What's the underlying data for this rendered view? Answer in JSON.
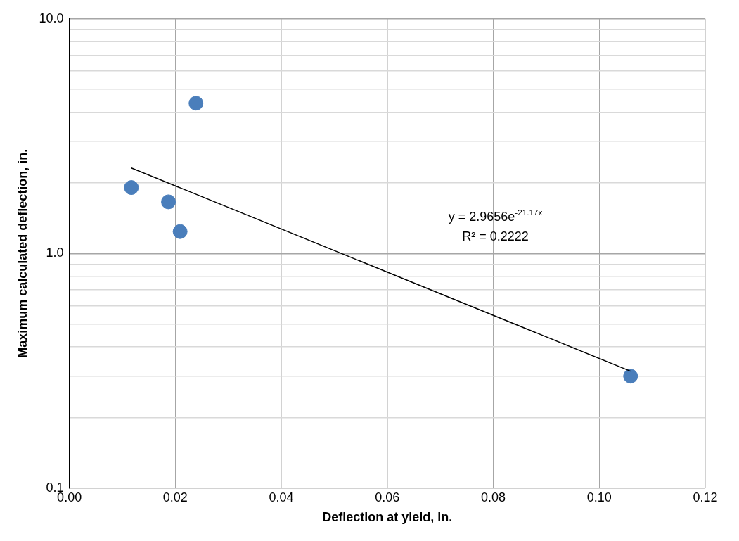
{
  "chart_data": {
    "type": "scatter",
    "xlabel": "Deflection at yield, in.",
    "ylabel": "Maximum calculated deflection, in.",
    "series": [
      {
        "color": "#4a7ebb",
        "marker": "circle",
        "x": [
          0.0117,
          0.0187,
          0.0209,
          0.0239,
          0.1059
        ],
        "values": [
          1.91,
          1.66,
          1.24,
          4.37,
          0.3
        ]
      },
      {
        "type": "line",
        "color": "#000000",
        "marker": "none",
        "x": [
          0.0117,
          0.1059
        ],
        "values": [
          2.315,
          0.315
        ]
      }
    ],
    "xlim": [
      0,
      0.12
    ],
    "ylim": [
      0.1,
      10
    ],
    "xticks": [
      {
        "value": 0,
        "label": "0.00"
      },
      {
        "value": 0.02,
        "label": "0.02"
      },
      {
        "value": 0.04,
        "label": "0.04"
      },
      {
        "value": 0.06,
        "label": "0.06"
      },
      {
        "value": 0.08,
        "label": "0.08"
      },
      {
        "value": 0.1,
        "label": "0.10"
      },
      {
        "value": 0.12,
        "label": "0.12"
      }
    ],
    "yticks": [
      {
        "value": 0.1,
        "label": "0.1"
      },
      {
        "value": 0.2,
        "label": null
      },
      {
        "value": 0.3,
        "label": null
      },
      {
        "value": 0.4,
        "label": null
      },
      {
        "value": 0.5,
        "label": null
      },
      {
        "value": 0.6,
        "label": null
      },
      {
        "value": 0.7,
        "label": null
      },
      {
        "value": 0.8,
        "label": null
      },
      {
        "value": 0.9,
        "label": null
      },
      {
        "value": 1,
        "label": "1.0"
      },
      {
        "value": 2,
        "label": null
      },
      {
        "value": 3,
        "label": null
      },
      {
        "value": 4,
        "label": null
      },
      {
        "value": 5,
        "label": null
      },
      {
        "value": 6,
        "label": null
      },
      {
        "value": 7,
        "label": null
      },
      {
        "value": 8,
        "label": null
      },
      {
        "value": 9,
        "label": null
      },
      {
        "value": 10,
        "label": "10.0"
      }
    ],
    "log": "y",
    "grid": true,
    "legend": false,
    "line_style": "solid",
    "annotations": [
      "y = 2.9656e$^{-21.17x}$",
      "R² = 0.2222"
    ]
  }
}
